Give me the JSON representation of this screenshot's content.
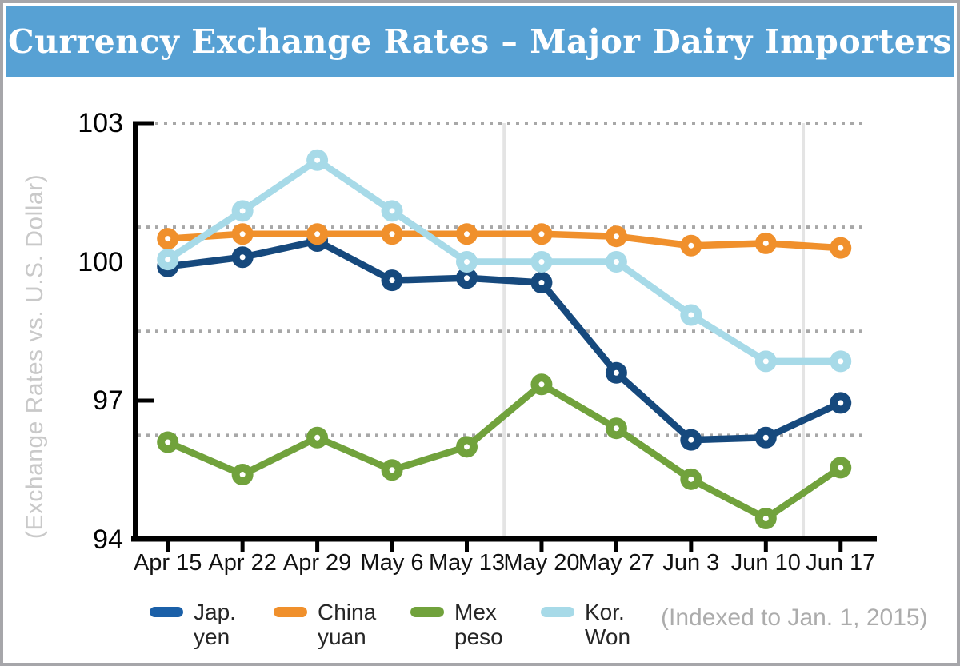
{
  "banner": {
    "title": "Currency Exchange Rates – Major Dairy Importers",
    "bg_color": "#57A1D4",
    "text_color": "#FFFFFF"
  },
  "note": "(Indexed to Jan. 1, 2015)",
  "chart_data": {
    "type": "line",
    "title": "Currency Exchange Rates – Major Dairy Importers",
    "ylabel": "(Exchange Rates vs. U.S. Dollar)",
    "xlabel": "",
    "categories": [
      "Apr 15",
      "Apr 22",
      "Apr 29",
      "May 6",
      "May 13",
      "May 20",
      "May 27",
      "Jun 3",
      "Jun 10",
      "Jun 17"
    ],
    "series": [
      {
        "name": "Jap. yen",
        "legend_lines": "Jap.\nyen",
        "color": "#16497D",
        "legend_color": "#1B60A8",
        "values": [
          99.9,
          100.1,
          100.45,
          99.6,
          99.65,
          99.55,
          97.6,
          96.15,
          96.2,
          96.95
        ]
      },
      {
        "name": "China yuan",
        "legend_lines": "China\nyuan",
        "color": "#F0902C",
        "legend_color": "#F0902C",
        "values": [
          100.5,
          100.6,
          100.6,
          100.6,
          100.6,
          100.6,
          100.55,
          100.35,
          100.4,
          100.3
        ]
      },
      {
        "name": "Mex peso",
        "legend_lines": "Mex\npeso",
        "color": "#71A23C",
        "legend_color": "#71A23C",
        "values": [
          96.1,
          95.4,
          96.2,
          95.5,
          96.0,
          97.35,
          96.4,
          95.3,
          94.45,
          95.55
        ]
      },
      {
        "name": "Kor. Won",
        "legend_lines": "Kor.\nWon",
        "color": "#A7DAE8",
        "legend_color": "#A7DAE8",
        "values": [
          100.05,
          101.1,
          102.2,
          101.1,
          100.0,
          100.0,
          100.0,
          98.85,
          97.85,
          97.85
        ]
      }
    ],
    "ylim": [
      94,
      103
    ],
    "yticks": [
      103,
      100,
      97,
      94
    ],
    "y_inner_tick_marks": [
      103,
      97
    ],
    "dotted_gridlines_y": [
      103,
      100.75,
      98.5,
      96.25
    ],
    "vertical_separator_positions": [
      4.5,
      8.5
    ],
    "grid": "dotted horizontal",
    "legend_position": "bottom",
    "annotation": "(Indexed to Jan. 1, 2015)"
  },
  "colors": {
    "axis": "#000000",
    "dotted_grid": "#a8a8a8",
    "separator_line": "#e4e4e4",
    "x_label": "#121212",
    "y_label": "#000000",
    "ylabel_rotated": "#c9c9c9",
    "note": "#acacac",
    "outer_border": "#a6a6aa"
  }
}
